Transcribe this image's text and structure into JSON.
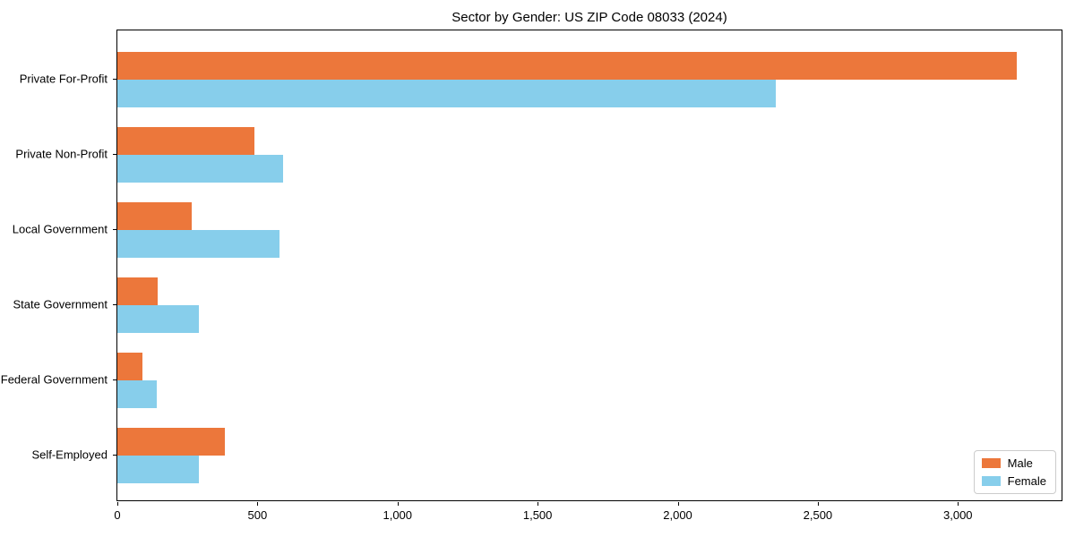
{
  "title": "Sector by Gender: US ZIP Code 08033 (2024)",
  "colors": {
    "male": "#ec773b",
    "female": "#87ceeb",
    "axis": "#000000",
    "legend_border": "#cccccc"
  },
  "chart_data": {
    "type": "bar",
    "orientation": "horizontal",
    "title": "Sector by Gender: US ZIP Code 08033 (2024)",
    "xlabel": "",
    "ylabel": "",
    "categories": [
      "Private For-Profit",
      "Private Non-Profit",
      "Local Government",
      "State Government",
      "Federal Government",
      "Self-Employed"
    ],
    "series": [
      {
        "name": "Male",
        "color": "#ec773b",
        "values": [
          3210,
          490,
          265,
          145,
          90,
          385
        ]
      },
      {
        "name": "Female",
        "color": "#87ceeb",
        "values": [
          2350,
          590,
          580,
          290,
          140,
          290
        ]
      }
    ],
    "xlim": [
      0,
      3370
    ],
    "x_ticks": [
      0,
      500,
      1000,
      1500,
      2000,
      2500,
      3000
    ],
    "x_tick_labels": [
      "0",
      "500",
      "1,000",
      "1,500",
      "2,000",
      "2,500",
      "3,000"
    ],
    "grid": false,
    "legend_position": "lower right"
  },
  "legend": {
    "entries": [
      {
        "label": "Male",
        "color": "#ec773b"
      },
      {
        "label": "Female",
        "color": "#87ceeb"
      }
    ]
  }
}
